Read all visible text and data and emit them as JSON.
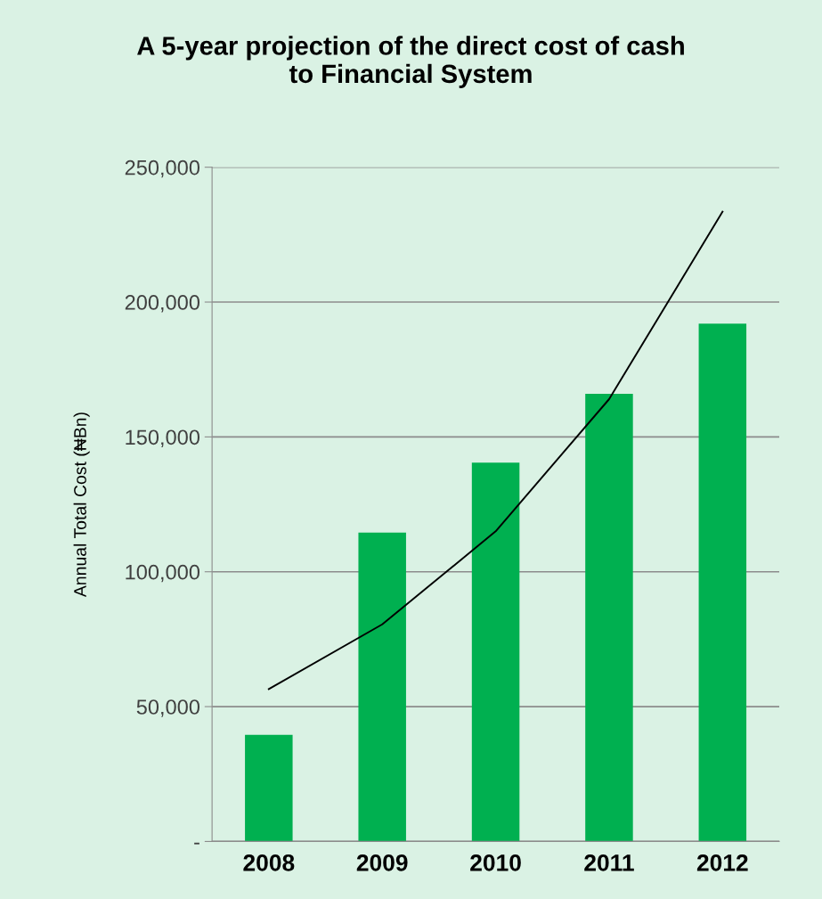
{
  "chart_data": {
    "type": "bar",
    "title": "A 5-year projection of the direct cost of cash\nto Financial System",
    "ylabel": "Annual Total Cost (₦Bn)",
    "categories": [
      "2008",
      "2009",
      "2010",
      "2011",
      "2012"
    ],
    "series": [
      {
        "color": "#00b050",
        "values": [
          39500,
          114500,
          140500,
          166000,
          192000
        ]
      },
      {
        "type": "line",
        "color": "#000000",
        "values": [
          56500,
          80500,
          115000,
          164000,
          233500
        ]
      }
    ],
    "ylim": [
      0,
      250000
    ],
    "yticks": [
      {
        "value": 0,
        "label": "-"
      },
      {
        "value": 50000,
        "label": "50,000"
      },
      {
        "value": 100000,
        "label": "100,000"
      },
      {
        "value": 150000,
        "label": "150,000"
      },
      {
        "value": 200000,
        "label": "200,000"
      },
      {
        "value": 250000,
        "label": "250,000"
      }
    ],
    "grid": "y",
    "legend": false
  }
}
